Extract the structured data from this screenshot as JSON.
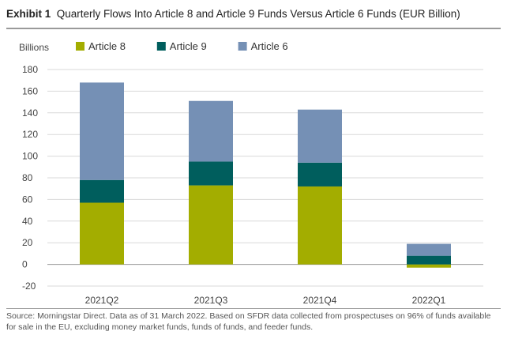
{
  "header": {
    "label": "Exhibit 1",
    "title": "Quarterly Flows Into Article 8 and Article 9 Funds Versus Article 6 Funds (EUR Billion)"
  },
  "source_note": "Source: Morningstar Direct. Data as of 31 March 2022. Based on SFDR data collected from prospectuses on 96% of funds available for sale in the EU, excluding money market funds, funds of funds, and feeder funds.",
  "chart_data": {
    "type": "bar",
    "stacked": true,
    "title": "Quarterly Flows Into Article 8 and Article 9 Funds Versus Article 6 Funds (EUR Billion)",
    "ylabel": "Billions",
    "xlabel": "",
    "ylim": [
      -20,
      180
    ],
    "yticks": [
      -20,
      0,
      20,
      40,
      60,
      80,
      100,
      120,
      140,
      160,
      180
    ],
    "grid": true,
    "legend_position": "top",
    "categories": [
      "2021Q2",
      "2021Q3",
      "2021Q4",
      "2022Q1"
    ],
    "series": [
      {
        "name": "Article 8",
        "color": "#a3ad00",
        "values": [
          57,
          73,
          72,
          -3
        ]
      },
      {
        "name": "Article 9",
        "color": "#005e5d",
        "values": [
          21,
          22,
          22,
          8
        ]
      },
      {
        "name": "Article 6",
        "color": "#7590b5",
        "values": [
          90,
          56,
          49,
          11
        ]
      }
    ]
  }
}
